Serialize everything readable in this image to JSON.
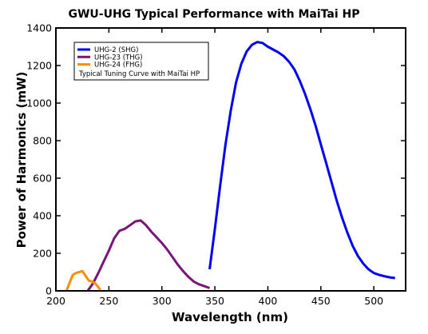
{
  "chart_data": {
    "type": "line",
    "title": "GWU-UHG Typical Performance with MaiTai HP",
    "xlabel": "Wavelength (nm)",
    "ylabel": "Power of Harmonics (mW)",
    "xlim": [
      200,
      530
    ],
    "ylim": [
      0,
      1400
    ],
    "xticks": [
      200,
      250,
      300,
      350,
      400,
      450,
      500
    ],
    "yticks": [
      0,
      200,
      400,
      600,
      800,
      1000,
      1200,
      1400
    ],
    "grid": false,
    "legend": {
      "placement": "top-left",
      "note": "Typical Tuning Curve with MaiTai HP"
    },
    "series": [
      {
        "name": "UHG-2 (SHG)",
        "color": "#0000ee",
        "x": [
          345,
          350,
          355,
          360,
          365,
          370,
          375,
          380,
          385,
          390,
          395,
          400,
          405,
          410,
          415,
          420,
          425,
          430,
          435,
          440,
          445,
          450,
          455,
          460,
          465,
          470,
          475,
          480,
          485,
          490,
          495,
          500,
          505,
          510,
          515,
          520
        ],
        "y": [
          115,
          330,
          560,
          780,
          960,
          1110,
          1210,
          1275,
          1310,
          1325,
          1320,
          1300,
          1285,
          1270,
          1250,
          1220,
          1180,
          1120,
          1050,
          970,
          880,
          780,
          680,
          580,
          480,
          390,
          310,
          240,
          185,
          145,
          115,
          95,
          85,
          78,
          72,
          68
        ]
      },
      {
        "name": "UHG-23 (THG)",
        "color": "#7a147a",
        "x": [
          230,
          235,
          240,
          245,
          250,
          255,
          260,
          265,
          270,
          275,
          280,
          285,
          290,
          295,
          300,
          305,
          310,
          315,
          320,
          325,
          330,
          335,
          340,
          345
        ],
        "y": [
          0,
          40,
          95,
          155,
          215,
          280,
          320,
          330,
          350,
          370,
          375,
          350,
          315,
          285,
          255,
          220,
          180,
          140,
          105,
          75,
          50,
          35,
          25,
          15
        ]
      },
      {
        "name": "UHG-24 (FHG)",
        "color": "#ff8c00",
        "x": [
          210,
          213,
          216,
          219,
          222,
          225,
          228,
          231,
          234,
          237,
          240,
          242
        ],
        "y": [
          0,
          45,
          85,
          95,
          100,
          105,
          80,
          55,
          50,
          40,
          20,
          5
        ]
      }
    ]
  }
}
